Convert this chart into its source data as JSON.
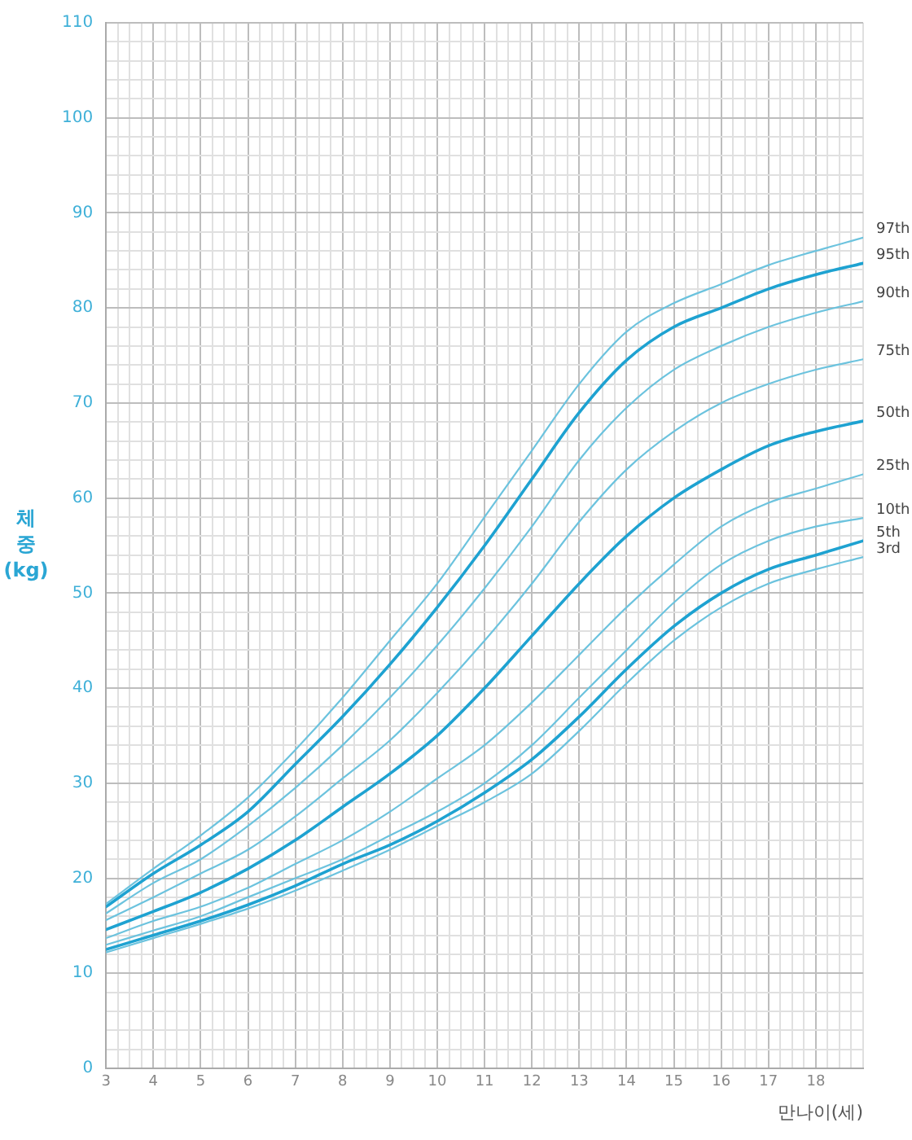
{
  "chart_data": {
    "type": "line",
    "xlabel": "만나이(세)",
    "ylabel": "체중 (kg)",
    "x": [
      3,
      4,
      5,
      6,
      7,
      8,
      9,
      10,
      11,
      12,
      13,
      14,
      15,
      16,
      17,
      18,
      19
    ],
    "series": [
      {
        "name": "97th",
        "color": "#6cc3de",
        "values": [
          17.3,
          21,
          24.5,
          28.5,
          33.5,
          39,
          45,
          51,
          58,
          65,
          72,
          77.5,
          80.5,
          82.5,
          84.5,
          86,
          87.4
        ]
      },
      {
        "name": "95th",
        "color": "#1ea2d1",
        "values": [
          17,
          20.5,
          23.5,
          27,
          32,
          37,
          42.5,
          48.5,
          55,
          62,
          69,
          74.5,
          78,
          80,
          82,
          83.5,
          84.7
        ]
      },
      {
        "name": "90th",
        "color": "#6cc3de",
        "values": [
          16.3,
          19.5,
          22,
          25.5,
          29.5,
          34,
          39,
          44.5,
          50.5,
          57,
          64,
          69.5,
          73.5,
          76,
          78,
          79.5,
          80.7
        ]
      },
      {
        "name": "75th",
        "color": "#6cc3de",
        "values": [
          15.6,
          18,
          20.5,
          23,
          26.5,
          30.5,
          34.5,
          39.5,
          45,
          51,
          57.5,
          63,
          67,
          70,
          72,
          73.5,
          74.6
        ]
      },
      {
        "name": "50th",
        "color": "#1ea2d1",
        "values": [
          14.6,
          16.5,
          18.5,
          21,
          24,
          27.5,
          31,
          35,
          40,
          45.5,
          51,
          56,
          60,
          63,
          65.5,
          67,
          68.1
        ]
      },
      {
        "name": "25th",
        "color": "#6cc3de",
        "values": [
          13.7,
          15.5,
          17,
          19,
          21.5,
          24,
          27,
          30.5,
          34,
          38.5,
          43.5,
          48.5,
          53,
          57,
          59.5,
          61,
          62.5
        ]
      },
      {
        "name": "10th",
        "color": "#6cc3de",
        "values": [
          13,
          14.5,
          16,
          18,
          20,
          22,
          24.5,
          27,
          30,
          34,
          39,
          44,
          49,
          53,
          55.5,
          57,
          57.9
        ]
      },
      {
        "name": "5th",
        "color": "#1ea2d1",
        "values": [
          12.5,
          14,
          15.5,
          17.2,
          19.2,
          21.5,
          23.5,
          26,
          29,
          32.5,
          37,
          42,
          46.5,
          50,
          52.5,
          54,
          55.5
        ]
      },
      {
        "name": "3rd",
        "color": "#6cc3de",
        "values": [
          12.2,
          13.7,
          15.2,
          16.8,
          18.7,
          20.8,
          23,
          25.5,
          28,
          31,
          35.5,
          40.5,
          45,
          48.5,
          51,
          52.5,
          53.8
        ]
      }
    ],
    "xlim": [
      3,
      19
    ],
    "xticks": [
      3,
      {
        "value": 3.25,
        "label": null
      },
      {
        "value": 3.5,
        "label": null
      },
      {
        "value": 3.75,
        "label": null
      },
      4,
      {
        "value": 4.25,
        "label": null
      },
      {
        "value": 4.5,
        "label": null
      },
      {
        "value": 4.75,
        "label": null
      },
      5,
      {
        "value": 5.25,
        "label": null
      },
      {
        "value": 5.5,
        "label": null
      },
      {
        "value": 5.75,
        "label": null
      },
      6,
      {
        "value": 6.25,
        "label": null
      },
      {
        "value": 6.5,
        "label": null
      },
      {
        "value": 6.75,
        "label": null
      },
      7,
      {
        "value": 7.25,
        "label": null
      },
      {
        "value": 7.5,
        "label": null
      },
      {
        "value": 7.75,
        "label": null
      },
      8,
      {
        "value": 8.25,
        "label": null
      },
      {
        "value": 8.5,
        "label": null
      },
      {
        "value": 8.75,
        "label": null
      },
      9,
      {
        "value": 9.25,
        "label": null
      },
      {
        "value": 9.5,
        "label": null
      },
      {
        "value": 9.75,
        "label": null
      },
      10,
      {
        "value": 10.25,
        "label": null
      },
      {
        "value": 10.5,
        "label": null
      },
      {
        "value": 10.75,
        "label": null
      },
      11,
      {
        "value": 11.25,
        "label": null
      },
      {
        "value": 11.5,
        "label": null
      },
      {
        "value": 11.75,
        "label": null
      },
      12,
      {
        "value": 12.25,
        "label": null
      },
      {
        "value": 12.5,
        "label": null
      },
      {
        "value": 12.75,
        "label": null
      },
      13,
      {
        "value": 13.25,
        "label": null
      },
      {
        "value": 13.5,
        "label": null
      },
      {
        "value": 13.75,
        "label": null
      },
      14,
      {
        "value": 14.25,
        "label": null
      },
      {
        "value": 14.5,
        "label": null
      },
      {
        "value": 14.75,
        "label": null
      },
      15,
      {
        "value": 15.25,
        "label": null
      },
      {
        "value": 15.5,
        "label": null
      },
      {
        "value": 15.75,
        "label": null
      },
      16,
      {
        "value": 16.25,
        "label": null
      },
      {
        "value": 16.5,
        "label": null
      },
      {
        "value": 16.75,
        "label": null
      },
      17,
      {
        "value": 17.25,
        "label": null
      },
      {
        "value": 17.5,
        "label": null
      },
      {
        "value": 17.75,
        "label": null
      },
      18,
      {
        "value": 18.25,
        "label": null
      },
      {
        "value": 18.5,
        "label": null
      },
      {
        "value": 18.75,
        "label": null
      },
      {
        "value": 19,
        "label": null
      }
    ],
    "ylim": [
      0,
      110
    ],
    "yticks": [
      0,
      {
        "value": 2,
        "label": null
      },
      {
        "value": 4,
        "label": null
      },
      {
        "value": 6,
        "label": null
      },
      {
        "value": 8,
        "label": null
      },
      10,
      {
        "value": 12,
        "label": null
      },
      {
        "value": 14,
        "label": null
      },
      {
        "value": 16,
        "label": null
      },
      {
        "value": 18,
        "label": null
      },
      20,
      {
        "value": 22,
        "label": null
      },
      {
        "value": 24,
        "label": null
      },
      {
        "value": 26,
        "label": null
      },
      {
        "value": 28,
        "label": null
      },
      30,
      {
        "value": 32,
        "label": null
      },
      {
        "value": 34,
        "label": null
      },
      {
        "value": 36,
        "label": null
      },
      {
        "value": 38,
        "label": null
      },
      40,
      {
        "value": 42,
        "label": null
      },
      {
        "value": 44,
        "label": null
      },
      {
        "value": 46,
        "label": null
      },
      {
        "value": 48,
        "label": null
      },
      50,
      {
        "value": 52,
        "label": null
      },
      {
        "value": 54,
        "label": null
      },
      {
        "value": 56,
        "label": null
      },
      {
        "value": 58,
        "label": null
      },
      60,
      {
        "value": 62,
        "label": null
      },
      {
        "value": 64,
        "label": null
      },
      {
        "value": 66,
        "label": null
      },
      {
        "value": 68,
        "label": null
      },
      70,
      {
        "value": 72,
        "label": null
      },
      {
        "value": 74,
        "label": null
      },
      {
        "value": 76,
        "label": null
      },
      {
        "value": 78,
        "label": null
      },
      80,
      {
        "value": 82,
        "label": null
      },
      {
        "value": 84,
        "label": null
      },
      {
        "value": 86,
        "label": null
      },
      {
        "value": 88,
        "label": null
      },
      90,
      {
        "value": 92,
        "label": null
      },
      {
        "value": 94,
        "label": null
      },
      {
        "value": 96,
        "label": null
      },
      {
        "value": 98,
        "label": null
      },
      100,
      {
        "value": 102,
        "label": null
      },
      {
        "value": 104,
        "label": null
      },
      {
        "value": 106,
        "label": null
      },
      {
        "value": 108,
        "label": null
      },
      110
    ],
    "grid": true,
    "legend": false,
    "marker": "none",
    "line_style": "solid"
  }
}
